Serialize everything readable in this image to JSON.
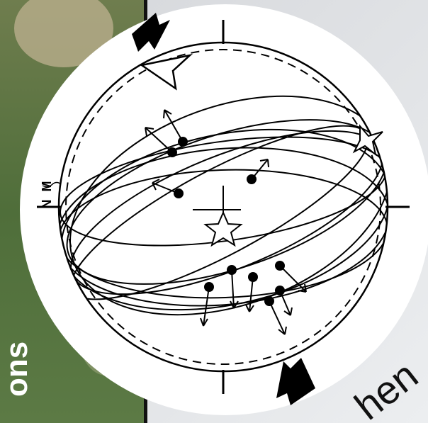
{
  "labels": {
    "n": "N",
    "m": "M"
  },
  "captions": {
    "left": "ons",
    "right": "hen"
  }
}
